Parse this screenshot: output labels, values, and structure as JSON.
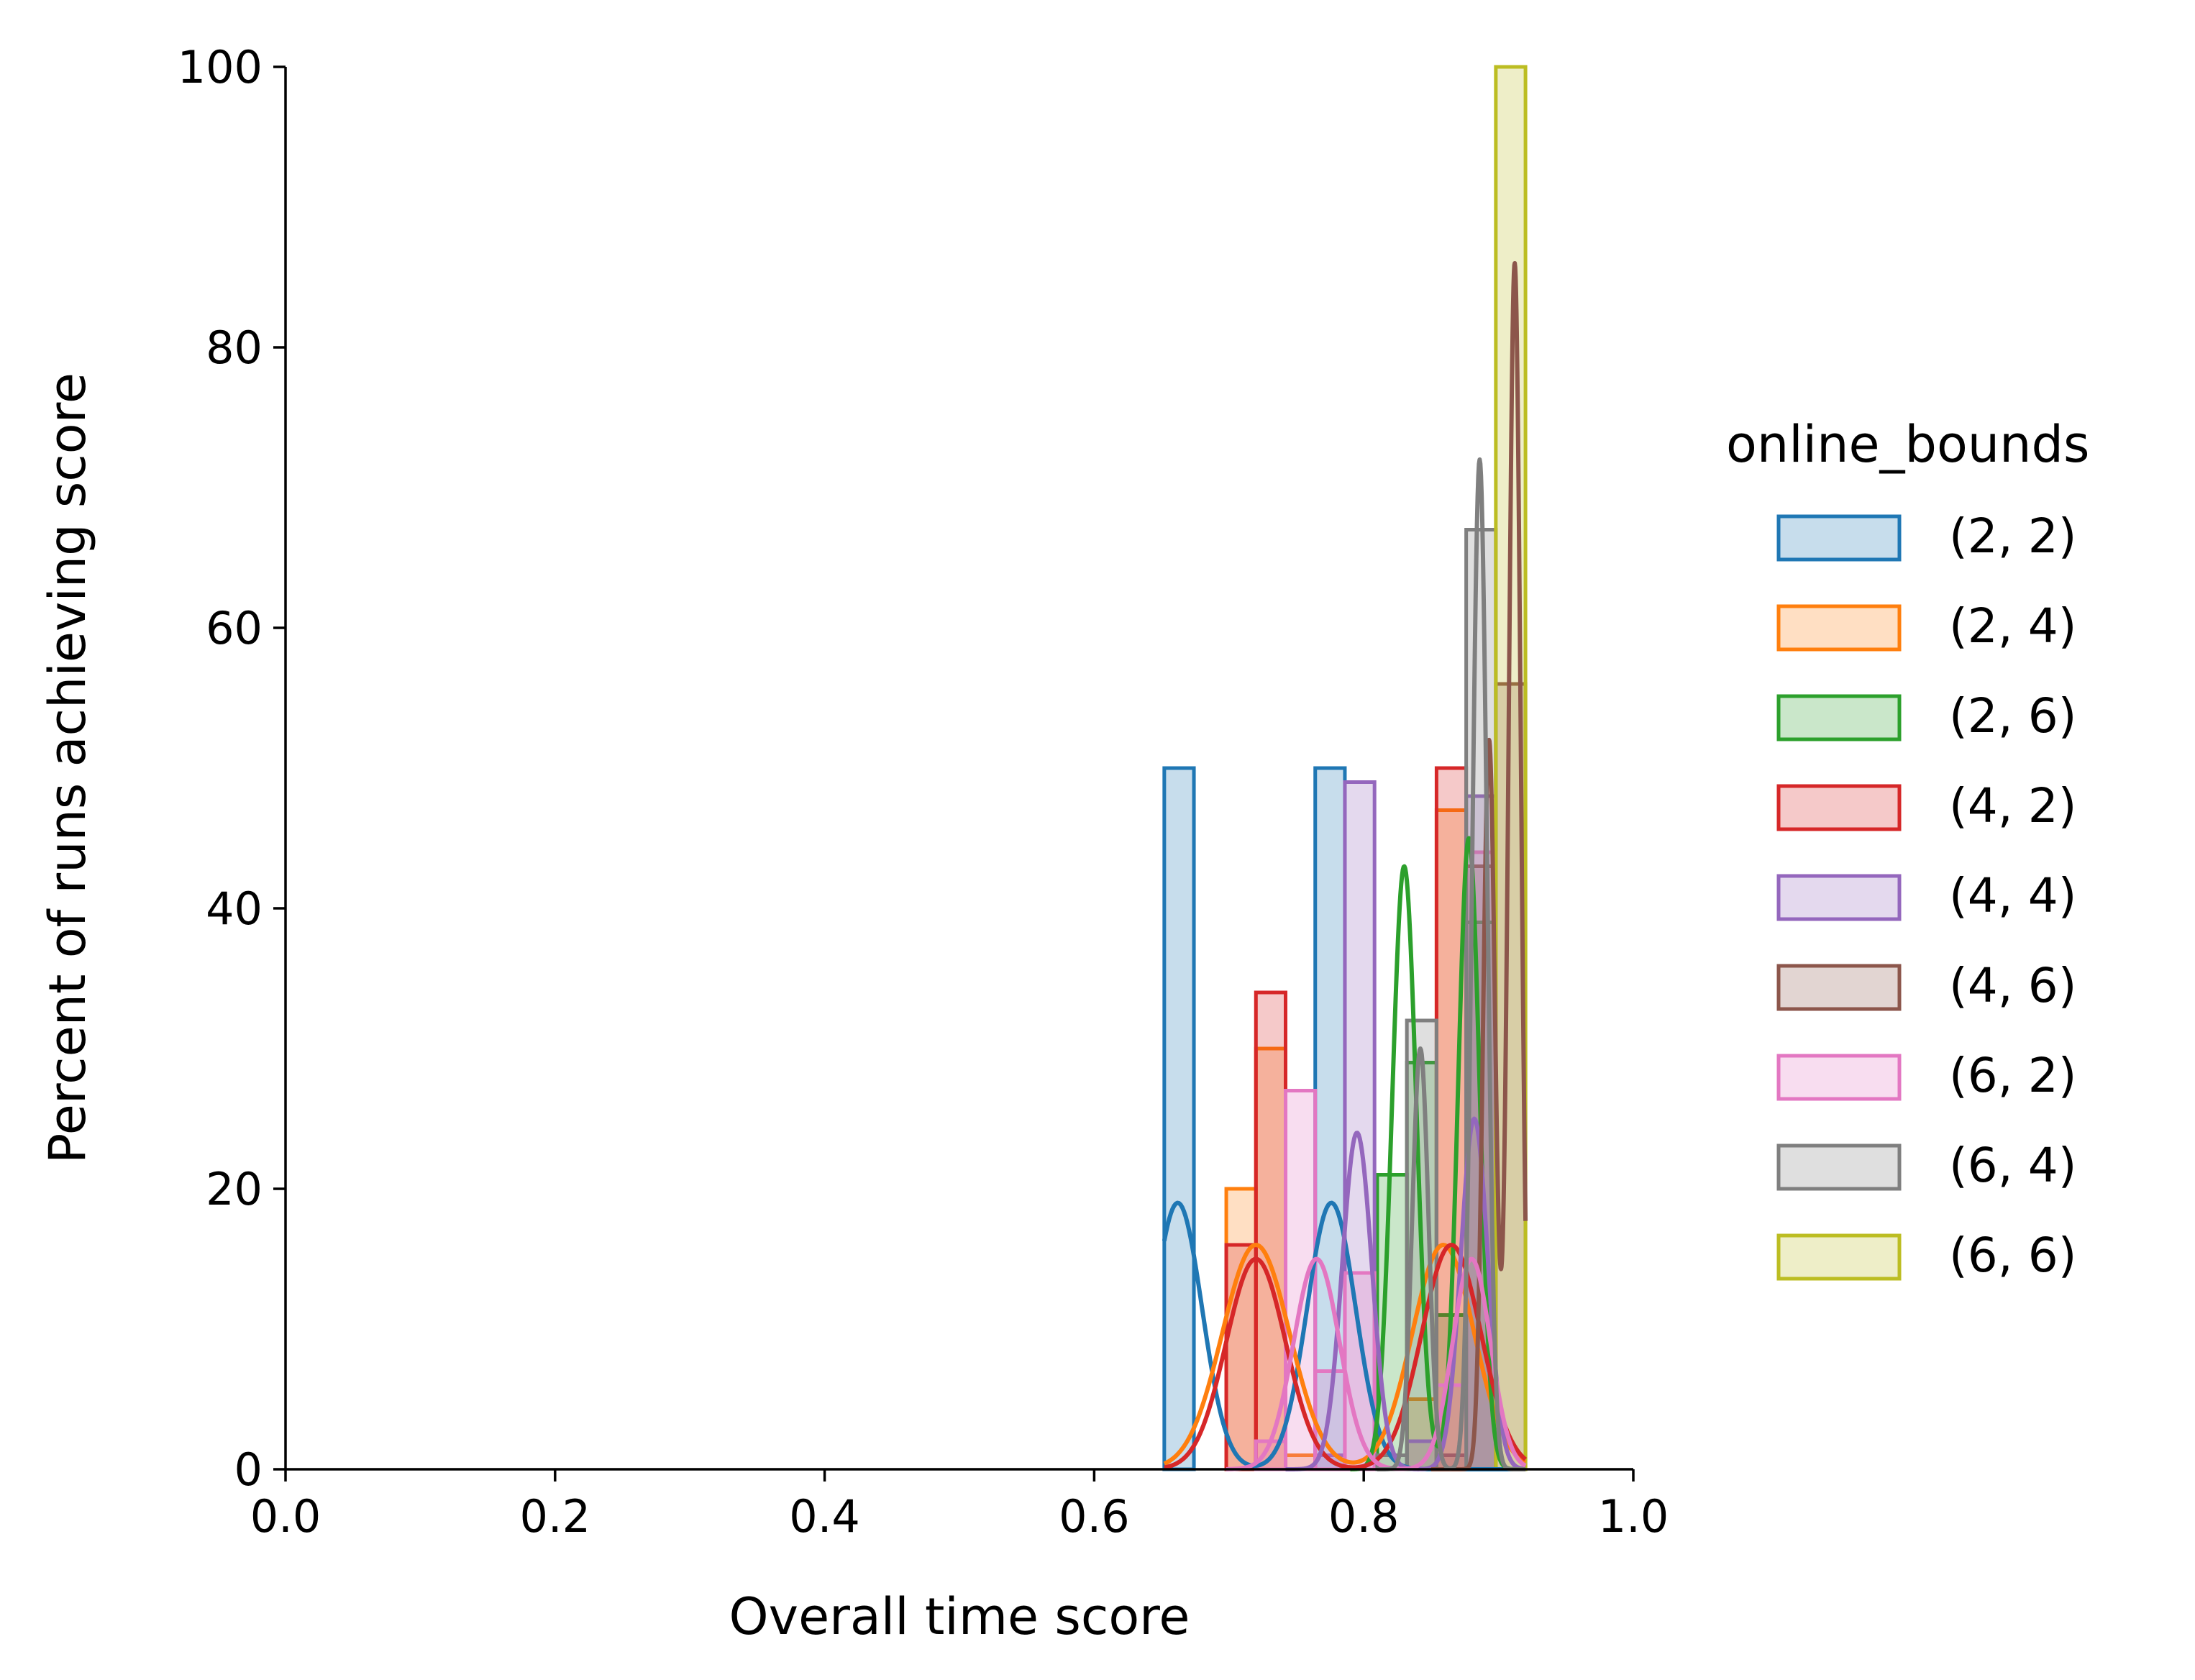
{
  "chart_data": {
    "type": "histogram",
    "title": "",
    "xlabel": "Overall time score",
    "ylabel": "Percent of runs achieving score",
    "xlim": [
      0.0,
      1.0
    ],
    "ylim": [
      0,
      100
    ],
    "xticks": [
      0.0,
      0.2,
      0.4,
      0.6,
      0.8,
      1.0
    ],
    "xtick_labels": [
      "0.0",
      "0.2",
      "0.4",
      "0.6",
      "0.8",
      "1.0"
    ],
    "yticks": [
      0,
      20,
      40,
      60,
      80,
      100
    ],
    "ytick_labels": [
      "0",
      "20",
      "40",
      "60",
      "80",
      "100"
    ],
    "grid": false,
    "legend_title": "online_bounds",
    "legend_position": "right",
    "series": [
      {
        "name": "(2, 2)",
        "color": "#1f77b4",
        "bins": [
          {
            "x0": 0.652,
            "x1": 0.674,
            "pct": 50
          },
          {
            "x0": 0.764,
            "x1": 0.786,
            "pct": 50
          }
        ],
        "kde_peaks": [
          {
            "x": 0.662,
            "h": 19,
            "w": 0.018
          },
          {
            "x": 0.776,
            "h": 19,
            "w": 0.018
          }
        ],
        "kde_range": [
          0.652,
          0.92
        ]
      },
      {
        "name": "(2, 4)",
        "color": "#ff7f0e",
        "bins": [
          {
            "x0": 0.698,
            "x1": 0.72,
            "pct": 20
          },
          {
            "x0": 0.72,
            "x1": 0.742,
            "pct": 30
          },
          {
            "x0": 0.742,
            "x1": 0.764,
            "pct": 1
          },
          {
            "x0": 0.832,
            "x1": 0.854,
            "pct": 5
          },
          {
            "x0": 0.854,
            "x1": 0.876,
            "pct": 47
          }
        ],
        "kde_peaks": [
          {
            "x": 0.72,
            "h": 16,
            "w": 0.025
          },
          {
            "x": 0.859,
            "h": 16,
            "w": 0.023
          }
        ],
        "kde_range": [
          0.652,
          0.92
        ]
      },
      {
        "name": "(2, 6)",
        "color": "#2ca02c",
        "bins": [
          {
            "x0": 0.81,
            "x1": 0.832,
            "pct": 21
          },
          {
            "x0": 0.832,
            "x1": 0.854,
            "pct": 29
          },
          {
            "x0": 0.854,
            "x1": 0.876,
            "pct": 11
          },
          {
            "x0": 0.876,
            "x1": 0.898,
            "pct": 39
          }
        ],
        "kde_peaks": [
          {
            "x": 0.83,
            "h": 43,
            "w": 0.009
          },
          {
            "x": 0.878,
            "h": 45,
            "w": 0.008
          }
        ],
        "kde_range": [
          0.79,
          0.92
        ]
      },
      {
        "name": "(4, 2)",
        "color": "#d62728",
        "bins": [
          {
            "x0": 0.698,
            "x1": 0.72,
            "pct": 16
          },
          {
            "x0": 0.72,
            "x1": 0.742,
            "pct": 34
          },
          {
            "x0": 0.854,
            "x1": 0.876,
            "pct": 50
          }
        ],
        "kde_peaks": [
          {
            "x": 0.72,
            "h": 15,
            "w": 0.022
          },
          {
            "x": 0.865,
            "h": 16,
            "w": 0.022
          }
        ],
        "kde_range": [
          0.652,
          0.92
        ]
      },
      {
        "name": "(4, 4)",
        "color": "#9467bd",
        "bins": [
          {
            "x0": 0.764,
            "x1": 0.786,
            "pct": 1
          },
          {
            "x0": 0.786,
            "x1": 0.808,
            "pct": 49
          },
          {
            "x0": 0.832,
            "x1": 0.854,
            "pct": 2
          },
          {
            "x0": 0.876,
            "x1": 0.898,
            "pct": 48
          }
        ],
        "kde_peaks": [
          {
            "x": 0.795,
            "h": 24,
            "w": 0.011
          },
          {
            "x": 0.882,
            "h": 25,
            "w": 0.01
          }
        ],
        "kde_range": [
          0.742,
          0.92
        ]
      },
      {
        "name": "(4, 6)",
        "color": "#8c564b",
        "bins": [
          {
            "x0": 0.854,
            "x1": 0.876,
            "pct": 1
          },
          {
            "x0": 0.876,
            "x1": 0.898,
            "pct": 43
          },
          {
            "x0": 0.898,
            "x1": 0.92,
            "pct": 56
          }
        ],
        "kde_peaks": [
          {
            "x": 0.893,
            "h": 52,
            "w": 0.0045
          },
          {
            "x": 0.912,
            "h": 86,
            "w": 0.0045
          }
        ],
        "kde_range": [
          0.85,
          0.92
        ]
      },
      {
        "name": "(6, 2)",
        "color": "#e377c2",
        "bins": [
          {
            "x0": 0.72,
            "x1": 0.742,
            "pct": 2
          },
          {
            "x0": 0.742,
            "x1": 0.764,
            "pct": 27
          },
          {
            "x0": 0.764,
            "x1": 0.786,
            "pct": 7
          },
          {
            "x0": 0.786,
            "x1": 0.808,
            "pct": 14
          },
          {
            "x0": 0.854,
            "x1": 0.876,
            "pct": 6
          },
          {
            "x0": 0.876,
            "x1": 0.898,
            "pct": 44
          }
        ],
        "kde_peaks": [
          {
            "x": 0.765,
            "h": 15,
            "w": 0.017
          },
          {
            "x": 0.88,
            "h": 15,
            "w": 0.014
          }
        ],
        "kde_range": [
          0.698,
          0.92
        ]
      },
      {
        "name": "(6, 4)",
        "color": "#7f7f7f",
        "bins": [
          {
            "x0": 0.81,
            "x1": 0.832,
            "pct": 1
          },
          {
            "x0": 0.832,
            "x1": 0.854,
            "pct": 32
          },
          {
            "x0": 0.876,
            "x1": 0.898,
            "pct": 67
          }
        ],
        "kde_peaks": [
          {
            "x": 0.842,
            "h": 30,
            "w": 0.006
          },
          {
            "x": 0.886,
            "h": 72,
            "w": 0.0055
          }
        ],
        "kde_range": [
          0.81,
          0.92
        ]
      },
      {
        "name": "(6, 6)",
        "color": "#bcbd22",
        "bins": [
          {
            "x0": 0.898,
            "x1": 0.92,
            "pct": 100
          }
        ],
        "kde_peaks": [],
        "kde_range": [
          0.898,
          0.92
        ]
      }
    ]
  }
}
